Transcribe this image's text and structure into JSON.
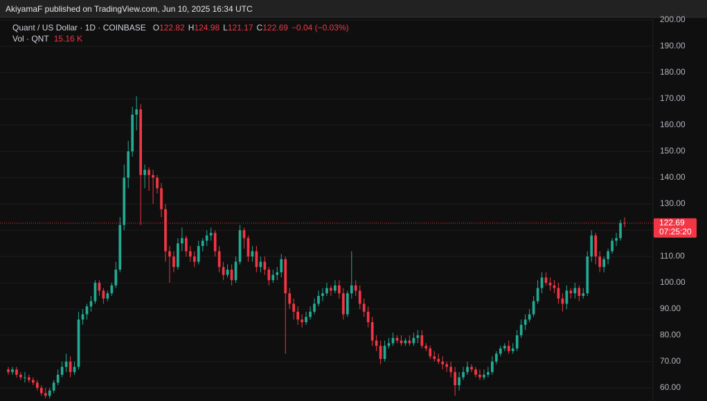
{
  "header": {
    "text": "AkiyamaF published on TradingView.com, Jun 10, 2025 16:34 UTC"
  },
  "chart_data": {
    "type": "candlestick",
    "title": "Quant / US Dollar · 1D · COINBASE",
    "ohlc_labels": [
      "O",
      "H",
      "L",
      "C"
    ],
    "change": "−0.04 (−0.03%)",
    "volume_label": "Vol · QNT",
    "volume_value": "15.16 K",
    "countdown": "07:25:20",
    "up_color": "#22ab94",
    "down_color": "#f23645",
    "grid": true,
    "ylim": [
      55,
      201.05
    ],
    "yticks": [
      {
        "value": 60,
        "label": "60.00"
      },
      {
        "value": 70,
        "label": "70.00"
      },
      {
        "value": 80,
        "label": "80.00"
      },
      {
        "value": 90,
        "label": "90.00"
      },
      {
        "value": 100,
        "label": "100.00"
      },
      {
        "value": 110,
        "label": "110.00"
      },
      {
        "value": 120,
        "label": "120.00"
      },
      {
        "value": 130,
        "label": "130.00"
      },
      {
        "value": 140,
        "label": "140.00"
      },
      {
        "value": 150,
        "label": "150.00"
      },
      {
        "value": 160,
        "label": "160.00"
      },
      {
        "value": 170,
        "label": "170.00"
      },
      {
        "value": 180,
        "label": "180.00"
      },
      {
        "value": 190,
        "label": "190.00"
      },
      {
        "value": 200,
        "label": "200.00"
      }
    ],
    "open": [
      67,
      66,
      67,
      65,
      64,
      64,
      63,
      62,
      60,
      58,
      57,
      59,
      62,
      65,
      68,
      70,
      66,
      68,
      86,
      88,
      91,
      93,
      100,
      97,
      94,
      96,
      99,
      105,
      122,
      140,
      150,
      164,
      166,
      141,
      143,
      141,
      140,
      136,
      128,
      112,
      110,
      106,
      115,
      117,
      112,
      110,
      108,
      114,
      116,
      118,
      119,
      112,
      106,
      103,
      105,
      101,
      108,
      120,
      117,
      110,
      112,
      106,
      108,
      105,
      101,
      103,
      104,
      109,
      96,
      92,
      89,
      86,
      85,
      87,
      89,
      92,
      95,
      96,
      98,
      97,
      99,
      96,
      88,
      96,
      99,
      97,
      92,
      89,
      85,
      78,
      76,
      71,
      76,
      77,
      79,
      78,
      77,
      78,
      77,
      79,
      80,
      76,
      75,
      72,
      71,
      70,
      69,
      68,
      66,
      61,
      64,
      66,
      68,
      67,
      65,
      64,
      65,
      66,
      70,
      73,
      75,
      76,
      74,
      75,
      80,
      84,
      86,
      88,
      93,
      98,
      102,
      100,
      99,
      98,
      94,
      92,
      97,
      96,
      98,
      95,
      96,
      110,
      118,
      110,
      106,
      109,
      112,
      116,
      117,
      122.82
    ],
    "high": [
      68,
      68,
      68,
      66,
      66,
      65,
      64,
      63,
      61,
      60,
      60,
      63,
      67,
      70,
      73,
      72,
      70,
      89,
      90,
      92,
      95,
      101,
      101,
      98,
      97,
      100,
      108,
      125,
      145,
      154,
      167,
      171,
      168,
      145,
      144,
      143,
      141,
      138,
      130,
      114,
      112,
      117,
      121,
      118,
      114,
      112,
      116,
      117,
      120,
      121,
      120,
      114,
      108,
      107,
      107,
      110,
      122,
      121,
      118,
      114,
      114,
      110,
      110,
      106,
      105,
      106,
      111,
      110,
      98,
      94,
      91,
      88,
      89,
      91,
      94,
      97,
      98,
      100,
      99,
      101,
      101,
      98,
      97,
      112,
      101,
      99,
      94,
      91,
      87,
      80,
      78,
      78,
      79,
      81,
      80,
      80,
      79,
      80,
      81,
      82,
      82,
      77,
      76,
      74,
      73,
      72,
      70,
      70,
      68,
      66,
      68,
      70,
      69,
      68,
      67,
      67,
      68,
      72,
      74,
      76,
      77,
      78,
      77,
      82,
      86,
      88,
      90,
      95,
      101,
      104,
      104,
      102,
      101,
      100,
      96,
      99,
      98,
      100,
      99,
      98,
      112,
      120,
      119,
      112,
      110,
      113,
      117,
      119,
      124,
      124.98
    ],
    "low": [
      65,
      65,
      64,
      63,
      62,
      62,
      61,
      59,
      57,
      56,
      56,
      58,
      61,
      64,
      66,
      64,
      65,
      67,
      84,
      86,
      89,
      92,
      95,
      92,
      93,
      95,
      98,
      104,
      120,
      136,
      148,
      158,
      122,
      136,
      135,
      130,
      134,
      125,
      108,
      100,
      104,
      105,
      112,
      110,
      108,
      106,
      107,
      112,
      114,
      116,
      110,
      104,
      101,
      102,
      99,
      100,
      107,
      113,
      108,
      108,
      104,
      104,
      103,
      99,
      100,
      101,
      102,
      73,
      90,
      86,
      84,
      83,
      84,
      86,
      88,
      91,
      93,
      95,
      95,
      96,
      94,
      86,
      87,
      94,
      95,
      90,
      87,
      83,
      76,
      74,
      69,
      70,
      75,
      76,
      77,
      76,
      76,
      76,
      76,
      77,
      75,
      74,
      71,
      70,
      69,
      67,
      66,
      64,
      57,
      59,
      63,
      65,
      66,
      64,
      63,
      63,
      64,
      65,
      69,
      72,
      74,
      73,
      73,
      74,
      79,
      82,
      85,
      87,
      92,
      96,
      99,
      97,
      96,
      92,
      89,
      90,
      94,
      94,
      93,
      94,
      95,
      108,
      107,
      104,
      104,
      107,
      111,
      114,
      116,
      121.17
    ],
    "close": [
      66,
      67,
      65,
      64,
      64,
      63,
      62,
      60,
      58,
      57,
      59,
      62,
      65,
      68,
      70,
      66,
      68,
      86,
      88,
      91,
      93,
      100,
      97,
      94,
      96,
      99,
      105,
      122,
      140,
      150,
      164,
      166,
      141,
      143,
      141,
      140,
      136,
      128,
      112,
      110,
      106,
      115,
      117,
      112,
      110,
      108,
      114,
      116,
      118,
      119,
      112,
      106,
      103,
      105,
      101,
      108,
      120,
      117,
      110,
      112,
      106,
      108,
      105,
      101,
      103,
      104,
      109,
      96,
      92,
      89,
      86,
      85,
      87,
      89,
      92,
      95,
      96,
      98,
      97,
      99,
      96,
      88,
      96,
      99,
      97,
      92,
      89,
      85,
      78,
      76,
      71,
      76,
      77,
      79,
      78,
      77,
      78,
      77,
      79,
      80,
      76,
      75,
      72,
      71,
      70,
      69,
      68,
      66,
      61,
      64,
      66,
      68,
      67,
      65,
      64,
      65,
      66,
      70,
      73,
      75,
      76,
      74,
      75,
      80,
      84,
      86,
      88,
      93,
      98,
      102,
      100,
      99,
      98,
      94,
      92,
      97,
      96,
      98,
      95,
      96,
      110,
      118,
      110,
      106,
      109,
      112,
      116,
      117,
      122.73,
      122.69
    ]
  }
}
